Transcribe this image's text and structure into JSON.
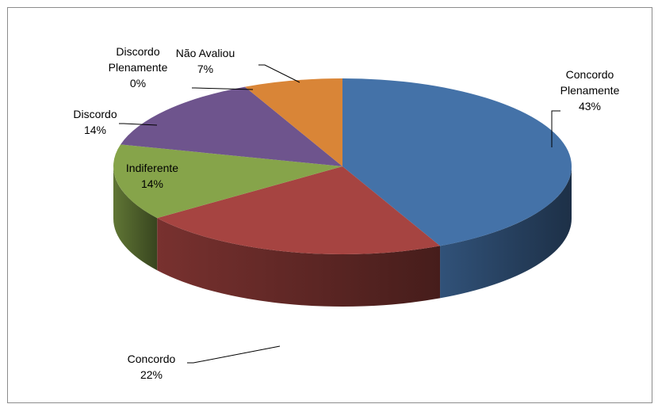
{
  "chart_data": {
    "type": "pie",
    "title": "",
    "slices": [
      {
        "label_lines": [
          "Concordo",
          "Plenamente"
        ],
        "percent_label": "43%",
        "value": 43,
        "color": "#4472a8"
      },
      {
        "label_lines": [
          "Concordo"
        ],
        "percent_label": "22%",
        "value": 22,
        "color": "#a64441"
      },
      {
        "label_lines": [
          "Indiferente"
        ],
        "percent_label": "14%",
        "value": 14,
        "color": "#86a44a"
      },
      {
        "label_lines": [
          "Discordo"
        ],
        "percent_label": "14%",
        "value": 14,
        "color": "#6e548d"
      },
      {
        "label_lines": [
          "Discordo",
          "Plenamente"
        ],
        "percent_label": "0%",
        "value": 0,
        "color": "#5a8fc2"
      },
      {
        "label_lines": [
          "Não Avaliou"
        ],
        "percent_label": "7%",
        "value": 7,
        "color": "#d98537"
      }
    ],
    "legend": "none",
    "style": "3d-pie"
  }
}
